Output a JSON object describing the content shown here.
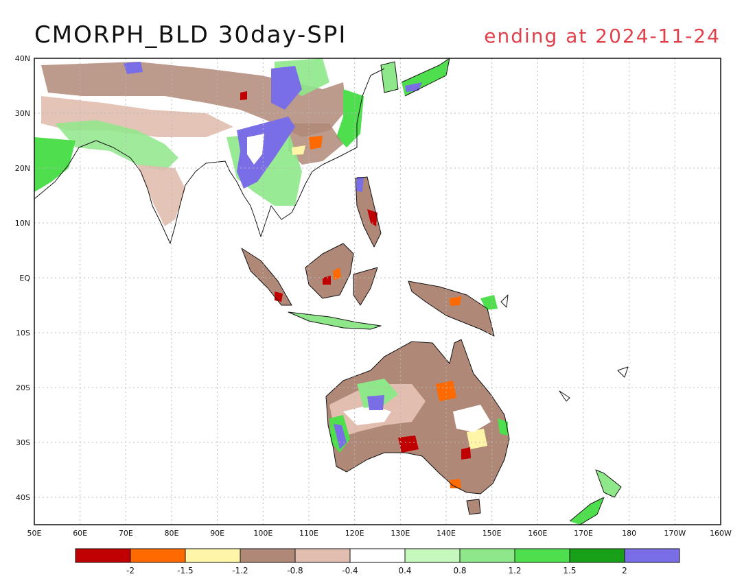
{
  "title": "CMORPH_BLD 30day-SPI",
  "subtitle": "ending at 2024-11-24",
  "map": {
    "lon_range": [
      50,
      200
    ],
    "lat_range": [
      -45,
      40
    ],
    "x_ticks": [
      "50E",
      "60E",
      "70E",
      "80E",
      "90E",
      "100E",
      "110E",
      "120E",
      "130E",
      "140E",
      "150E",
      "160E",
      "170E",
      "180",
      "170W",
      "160W"
    ],
    "y_ticks": [
      "40N",
      "30N",
      "20N",
      "10N",
      "EQ",
      "10S",
      "20S",
      "30S",
      "40S"
    ],
    "grid": true
  },
  "colorbar": {
    "colors": [
      "#c00000",
      "#ff6a00",
      "#fff5a8",
      "#b08878",
      "#e2beb0",
      "#ffffff",
      "#c6f7bc",
      "#8ee88a",
      "#4ede4e",
      "#18a018",
      "#7a6ee6"
    ],
    "labels": [
      "-2",
      "-1.5",
      "-1.2",
      "-0.8",
      "-0.4",
      "0.4",
      "0.8",
      "1.2",
      "1.5",
      "2"
    ]
  }
}
